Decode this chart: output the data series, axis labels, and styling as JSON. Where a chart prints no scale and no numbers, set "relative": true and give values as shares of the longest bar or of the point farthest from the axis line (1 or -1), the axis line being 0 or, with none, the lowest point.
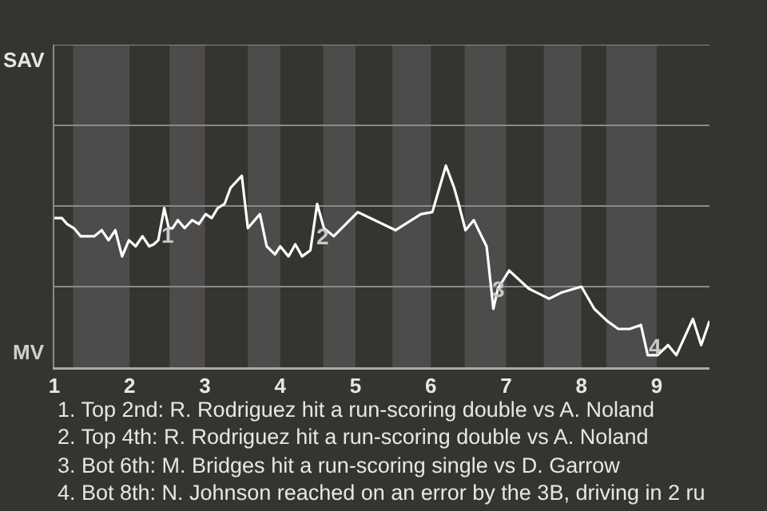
{
  "chart_data": {
    "type": "line",
    "x": [
      1.0,
      1.1,
      1.17,
      1.26,
      1.35,
      1.53,
      1.63,
      1.72,
      1.81,
      1.9,
      1.99,
      2.08,
      2.17,
      2.26,
      2.32,
      2.38,
      2.46,
      2.52,
      2.57,
      2.64,
      2.73,
      2.83,
      2.92,
      3.01,
      3.09,
      3.17,
      3.26,
      3.34,
      3.49,
      3.57,
      3.73,
      3.82,
      3.93,
      4.0,
      4.11,
      4.2,
      4.29,
      4.4,
      4.49,
      4.58,
      4.71,
      5.03,
      5.53,
      5.87,
      6.02,
      6.2,
      6.31,
      6.37,
      6.46,
      6.57,
      6.66,
      6.74,
      6.77,
      6.83,
      6.89,
      7.04,
      7.3,
      7.41,
      7.57,
      7.73,
      8.0,
      8.17,
      8.34,
      8.49,
      8.64,
      8.79,
      8.88,
      9.01,
      9.15,
      9.26,
      9.48,
      9.59,
      9.7
    ],
    "series": [
      {
        "color": "#ffffff",
        "values": [
          0.74,
          0.74,
          0.71,
          0.69,
          0.65,
          0.65,
          0.68,
          0.63,
          0.68,
          0.55,
          0.63,
          0.6,
          0.65,
          0.6,
          0.61,
          0.63,
          0.79,
          0.69,
          0.69,
          0.73,
          0.69,
          0.73,
          0.71,
          0.76,
          0.74,
          0.79,
          0.81,
          0.89,
          0.95,
          0.69,
          0.76,
          0.6,
          0.56,
          0.6,
          0.55,
          0.61,
          0.55,
          0.58,
          0.81,
          0.69,
          0.65,
          0.77,
          0.68,
          0.76,
          0.77,
          1,
          0.89,
          0.81,
          0.68,
          0.73,
          0.66,
          0.6,
          0.5,
          0.29,
          0.39,
          0.48,
          0.39,
          0.37,
          0.34,
          0.37,
          0.4,
          0.29,
          0.23,
          0.19,
          0.19,
          0.21,
          0.06,
          0.06,
          0.11,
          0.06,
          0.24,
          0.11,
          0.23
        ]
      }
    ],
    "relative": true,
    "xlim": [
      1,
      9.7
    ],
    "xticks": [
      1,
      2,
      3,
      4,
      5,
      6,
      7,
      8,
      9
    ],
    "ref_lines": [
      {
        "axis": "y",
        "value": 0.4,
        "color": "#8a8a8a"
      },
      {
        "axis": "y",
        "value": 0.8,
        "color": "#8a8a8a"
      },
      {
        "axis": "y",
        "value": 1.2,
        "color": "#8a8a8a"
      },
      {
        "axis": "y",
        "value": 1.6,
        "color": "#8a8a8a"
      }
    ],
    "bands": [
      {
        "axis": "x",
        "from": 1.25,
        "to": 2,
        "color": "#4d4c4a"
      },
      {
        "axis": "x",
        "from": 2.53,
        "to": 3,
        "color": "#4d4c4a"
      },
      {
        "axis": "x",
        "from": 3.57,
        "to": 4,
        "color": "#4d4c4a"
      },
      {
        "axis": "x",
        "from": 4.57,
        "to": 5,
        "color": "#4d4c4a"
      },
      {
        "axis": "x",
        "from": 5.49,
        "to": 6,
        "color": "#4d4c4a"
      },
      {
        "axis": "x",
        "from": 6.45,
        "to": 7,
        "color": "#4d4c4a"
      },
      {
        "axis": "x",
        "from": 7.5,
        "to": 8,
        "color": "#4d4c4a"
      },
      {
        "axis": "x",
        "from": 8.33,
        "to": 9,
        "color": "#4d4c4a"
      }
    ],
    "annotations": [
      {
        "text": "1",
        "x": 2.51,
        "y": 0.66
      },
      {
        "text": "2",
        "x": 4.57,
        "y": 0.65
      },
      {
        "text": "3",
        "x": 6.9,
        "y": 0.39
      },
      {
        "text": "4",
        "x": 8.97,
        "y": 0.1
      },
      "SAV",
      "MV",
      "1. Top 2nd: R. Rodriguez hit a run-scoring double vs A. Noland",
      "2. Top 4th: R. Rodriguez hit a run-scoring double vs A. Noland",
      "3. Bot 6th: M. Bridges hit a run-scoring single vs D. Garrow",
      "4. Bot 8th: N. Johnson reached on an error by the 3B, driving in 2 ru"
    ]
  }
}
